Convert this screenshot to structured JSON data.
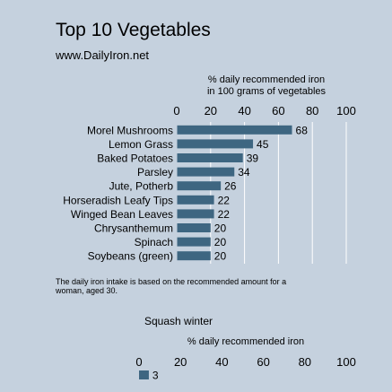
{
  "header": {
    "title": "Top 10 Vegetables",
    "subtitle": "www.DailyIron.net"
  },
  "footnote": "The daily iron intake is based on the recommended amount for a woman, aged 30.",
  "chart_data": [
    {
      "type": "bar",
      "orientation": "horizontal",
      "title": "",
      "xlabel_lines": [
        "% daily recommended iron",
        "in 100 grams of vegetables"
      ],
      "xlim": [
        0,
        100
      ],
      "xticks": [
        0,
        20,
        40,
        60,
        80,
        100
      ],
      "grid": true,
      "bar_color": "#3e6681",
      "categories": [
        "Morel Mushrooms",
        "Lemon Grass",
        "Baked Potatoes",
        "Parsley",
        "Jute, Potherb",
        "Horseradish Leafy Tips",
        "Winged Bean Leaves",
        "Chrysanthemum",
        "Spinach",
        "Soybeans (green)"
      ],
      "values": [
        68,
        45,
        39,
        34,
        26,
        22,
        22,
        20,
        20,
        20
      ]
    },
    {
      "type": "bar",
      "orientation": "horizontal",
      "title": "Squash winter",
      "xlabel_lines": [
        "% daily recommended iron"
      ],
      "xlim": [
        0,
        100
      ],
      "xticks": [
        0,
        20,
        40,
        60,
        80,
        100
      ],
      "grid": false,
      "bar_color": "#3e6681",
      "categories": [
        ""
      ],
      "values": [
        3
      ]
    }
  ]
}
